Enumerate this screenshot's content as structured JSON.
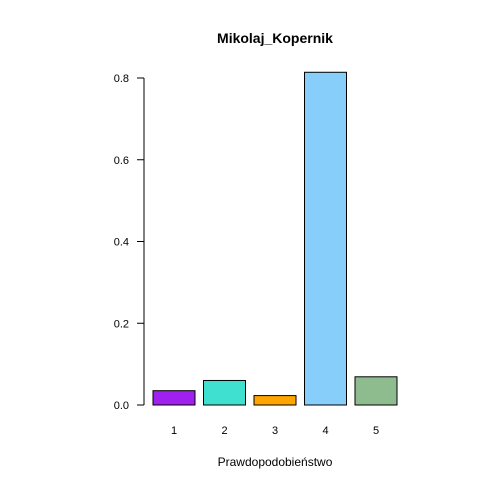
{
  "chart_data": {
    "type": "bar",
    "title": "Mikolaj_Kopernik",
    "xlabel": "Prawdopodobieństwo",
    "ylabel": "",
    "categories": [
      "1",
      "2",
      "3",
      "4",
      "5"
    ],
    "values": [
      0.035,
      0.06,
      0.023,
      0.814,
      0.069
    ],
    "colors": [
      "#a020f0",
      "#40e0d0",
      "#ffa500",
      "#87cefa",
      "#8fbc8f"
    ],
    "ylim": [
      0,
      0.8
    ],
    "yticks": [
      "0.0",
      "0.2",
      "0.4",
      "0.6",
      "0.8"
    ],
    "grid": false
  }
}
